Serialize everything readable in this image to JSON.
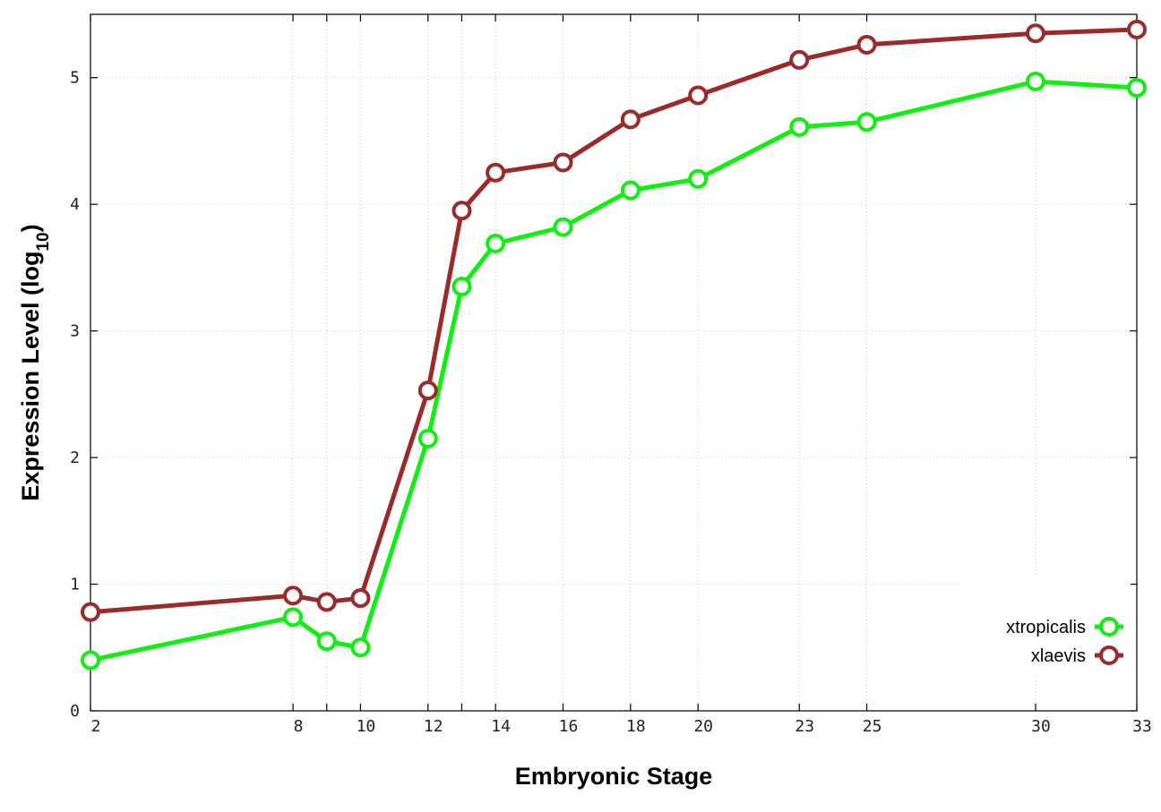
{
  "chart_data": {
    "type": "line",
    "xlabel": "Embryonic Stage",
    "ylabel_main": "Expression Level (log",
    "ylabel_sub": "10",
    "ylabel_close": ")",
    "x_ticks": [
      {
        "value": 2,
        "label": "2"
      },
      {
        "value": 8,
        "label": "8"
      },
      {
        "value": 9,
        "label": ""
      },
      {
        "value": 10,
        "label": "10"
      },
      {
        "value": 12,
        "label": "12"
      },
      {
        "value": 13,
        "label": ""
      },
      {
        "value": 14,
        "label": "14"
      },
      {
        "value": 16,
        "label": "16"
      },
      {
        "value": 18,
        "label": "18"
      },
      {
        "value": 20,
        "label": "20"
      },
      {
        "value": 23,
        "label": "23"
      },
      {
        "value": 25,
        "label": "25"
      },
      {
        "value": 30,
        "label": "30"
      },
      {
        "value": 33,
        "label": "33"
      }
    ],
    "y_ticks": [
      {
        "value": 0,
        "label": "0"
      },
      {
        "value": 1,
        "label": "1"
      },
      {
        "value": 2,
        "label": "2"
      },
      {
        "value": 3,
        "label": "3"
      },
      {
        "value": 4,
        "label": "4"
      },
      {
        "value": 5,
        "label": "5"
      }
    ],
    "xlim": [
      2,
      33
    ],
    "ylim": [
      0,
      5.5
    ],
    "grid": true,
    "legend_position": "bottom-right",
    "x": [
      2,
      8,
      9,
      10,
      12,
      13,
      14,
      16,
      18,
      20,
      23,
      25,
      30,
      33
    ],
    "series": [
      {
        "name": "xtropicalis",
        "color": "#11ee11",
        "values": [
          0.4,
          0.74,
          0.55,
          0.5,
          2.15,
          3.35,
          3.69,
          3.82,
          4.11,
          4.2,
          4.61,
          4.65,
          4.97,
          4.92
        ]
      },
      {
        "name": "xlaevis",
        "color": "#9b2b2b",
        "values": [
          0.78,
          0.91,
          0.86,
          0.89,
          2.53,
          3.95,
          4.25,
          4.33,
          4.67,
          4.86,
          5.14,
          5.26,
          5.35,
          5.38
        ]
      }
    ]
  }
}
